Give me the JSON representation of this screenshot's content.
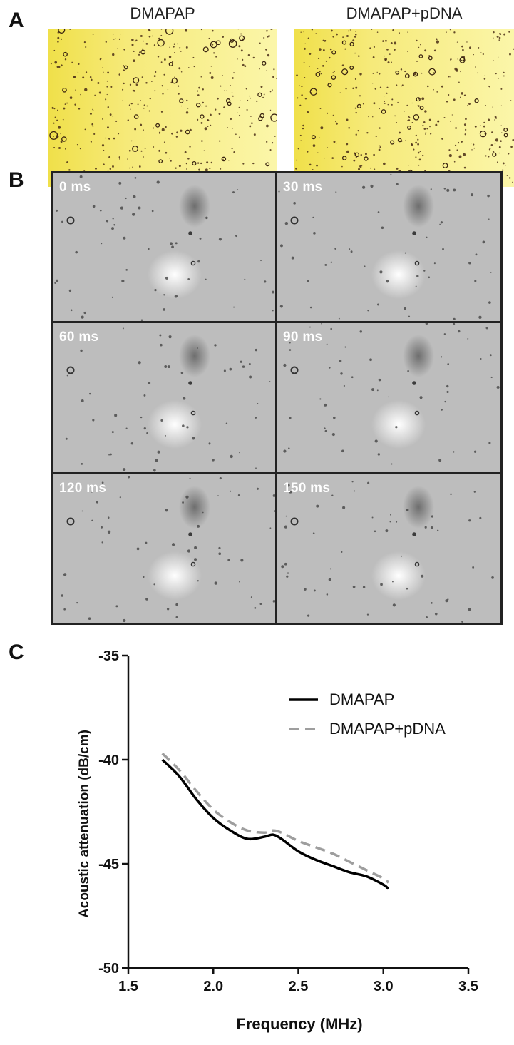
{
  "panels": {
    "a": {
      "letter": "A",
      "images": [
        {
          "title": "DMAPAP"
        },
        {
          "title": "DMAPAP+pDNA"
        }
      ]
    },
    "b": {
      "letter": "B",
      "frames": [
        {
          "time": "0 ms"
        },
        {
          "time": "30 ms"
        },
        {
          "time": "60 ms"
        },
        {
          "time": "90 ms"
        },
        {
          "time": "120 ms"
        },
        {
          "time": "150 ms"
        }
      ]
    },
    "c": {
      "letter": "C"
    }
  },
  "colors": {
    "micro_yellow_light": "#fbf6a9",
    "micro_yellow_dark": "#f0e04a",
    "frame_gray": "#bdbdbd",
    "series_dmapap": "#000000",
    "series_dmapap_pdna": "#9e9e9e"
  },
  "chart_data": {
    "type": "line",
    "xlabel": "Frequency (MHz)",
    "ylabel": "Acoustic attenuation (dB/cm)",
    "xlim": [
      1.5,
      3.5
    ],
    "ylim": [
      -50,
      -35
    ],
    "xticks": [
      "1.5",
      "2.0",
      "2.5",
      "3.0",
      "3.5"
    ],
    "yticks": [
      "-35",
      "-40",
      "-45",
      "-50"
    ],
    "x": [
      1.7,
      1.8,
      1.9,
      2.0,
      2.1,
      2.2,
      2.3,
      2.35,
      2.4,
      2.5,
      2.6,
      2.7,
      2.8,
      2.9,
      3.0,
      3.03
    ],
    "series": [
      {
        "name": "DMAPAP",
        "style": "solid",
        "values": [
          -40.0,
          -40.8,
          -41.9,
          -42.8,
          -43.4,
          -43.8,
          -43.7,
          -43.6,
          -43.8,
          -44.4,
          -44.8,
          -45.1,
          -45.4,
          -45.6,
          -46.0,
          -46.2
        ]
      },
      {
        "name": "DMAPAP+pDNA",
        "style": "dashed",
        "values": [
          -39.7,
          -40.5,
          -41.5,
          -42.4,
          -43.0,
          -43.4,
          -43.5,
          -43.4,
          -43.5,
          -43.9,
          -44.2,
          -44.5,
          -44.9,
          -45.3,
          -45.7,
          -45.9
        ]
      }
    ],
    "legend": "top-right",
    "grid": false
  }
}
